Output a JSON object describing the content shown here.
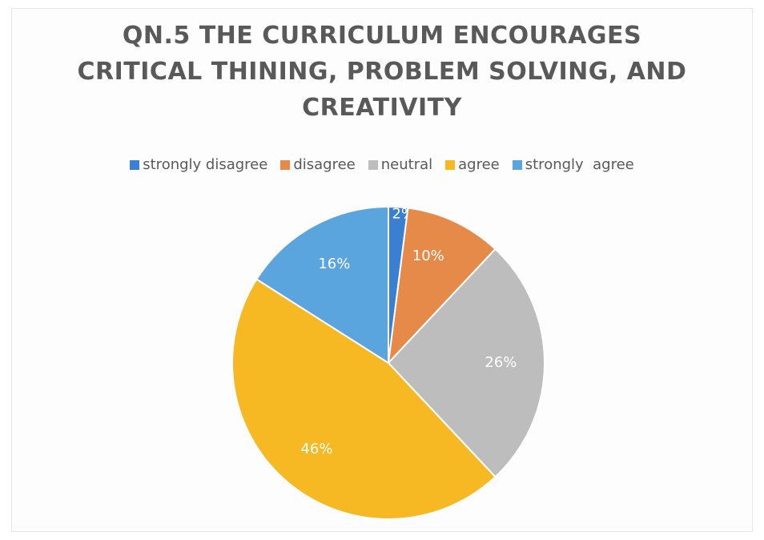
{
  "chart_data": {
    "type": "pie",
    "title_lines": [
      "QN.5 THE CURRICULUM ENCOURAGES",
      "CRITICAL THINING, PROBLEM SOLVING, AND",
      "CREATIVITY"
    ],
    "categories": [
      "strongly disagree",
      "disagree",
      "neutral",
      "agree",
      "strongly  agree"
    ],
    "values": [
      2,
      10,
      26,
      46,
      16
    ],
    "labels": [
      "2%",
      "10%",
      "26%",
      "46%",
      "16%"
    ],
    "colors": [
      "#3a7fd0",
      "#e68a4a",
      "#bdbdbd",
      "#f6b923",
      "#5aa5de"
    ],
    "legend_position": "top",
    "start_angle": "12 o'clock",
    "direction": "clockwise"
  }
}
